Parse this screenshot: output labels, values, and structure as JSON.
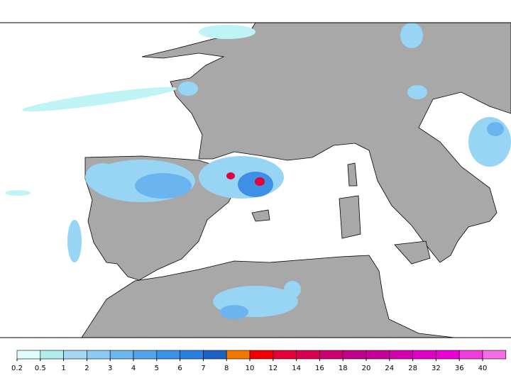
{
  "colorbar": {
    "levels": [
      0.2,
      0.5,
      1,
      2,
      3,
      4,
      5,
      6,
      7,
      8,
      10,
      12,
      14,
      16,
      18,
      20,
      24,
      28,
      32,
      36,
      40
    ],
    "colors": [
      "#e0fcfc",
      "#b0eeee",
      "#a2d8f4",
      "#8ccaf5",
      "#6cb6f0",
      "#52a4ec",
      "#3a92e8",
      "#2a80e0",
      "#1c62c4",
      "#f07800",
      "#f00000",
      "#e40038",
      "#d80050",
      "#cc0070",
      "#c00088",
      "#c8009c",
      "#d400b0",
      "#e000c4",
      "#ec00d8",
      "#f03cdc",
      "#f46ce6"
    ]
  }
}
